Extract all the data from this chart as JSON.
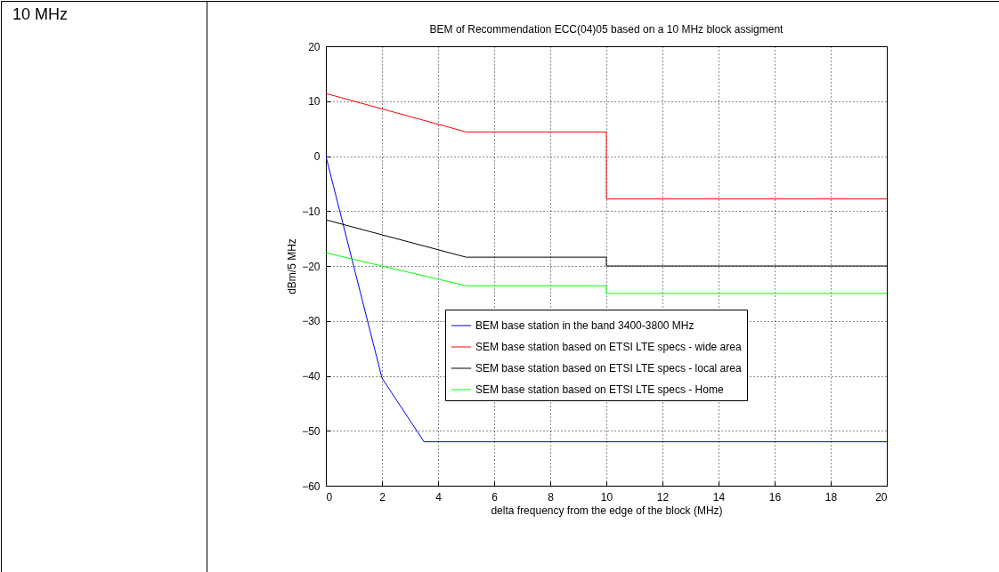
{
  "chart_data": {
    "type": "line",
    "title": "BEM of Recommendation ECC(04)05 based on a 10 MHz block assigment",
    "xlabel": "delta frequency from the edge of the block (MHz)",
    "ylabel": "dBm/5 MHz",
    "annotations": [
      "10 MHz"
    ],
    "xlim": [
      0,
      20
    ],
    "xticks": [
      0,
      2,
      4,
      6,
      8,
      10,
      12,
      14,
      16,
      18,
      20
    ],
    "ylim": [
      -60,
      20
    ],
    "yticks": [
      -60,
      -50,
      -40,
      -30,
      -20,
      -10,
      0,
      10,
      20
    ],
    "grid": true,
    "legend": "bottom right",
    "line_style": "solid",
    "marker": "none",
    "series": [
      {
        "name": "BEM base station in the band 3400-3800 MHz",
        "color": "#0000ff",
        "x": [
          0,
          2,
          3.5,
          20
        ],
        "values": [
          0,
          -40.4,
          -52,
          -52
        ]
      },
      {
        "name": "SEM base station based on ETSI LTE specs - wide area",
        "color": "#ff0000",
        "x": [
          0,
          5,
          10,
          10,
          20
        ],
        "values": [
          11.4,
          4.4,
          4.4,
          -7.8,
          -7.8
        ]
      },
      {
        "name": "SEM base station based on ETSI LTE specs - local area",
        "color": "#000000",
        "x": [
          0,
          5,
          10,
          10,
          20
        ],
        "values": [
          -11.6,
          -18.4,
          -18.4,
          -20,
          -20
        ]
      },
      {
        "name": "SEM base station based on ETSI LTE specs - Home",
        "color": "#00ff00",
        "x": [
          0,
          5,
          10,
          10,
          20
        ],
        "values": [
          -17.6,
          -23.6,
          -23.6,
          -25,
          -25
        ]
      }
    ]
  }
}
